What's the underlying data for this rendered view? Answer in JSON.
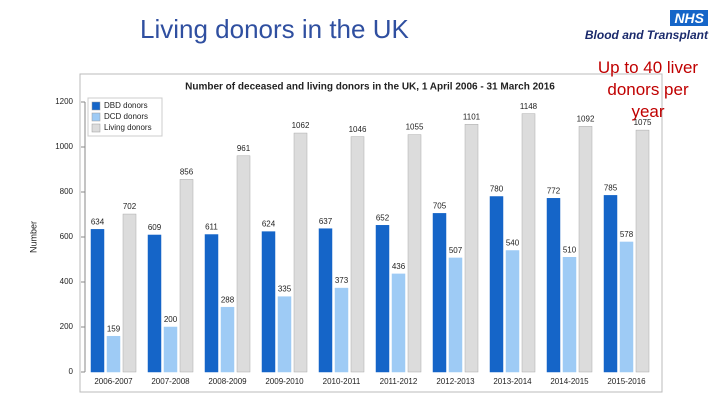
{
  "title": "Living donors in the UK",
  "logo": {
    "badge": "NHS",
    "text": "Blood and Transplant"
  },
  "annotation": "Up to 40 liver donors per year",
  "chart_data": {
    "type": "bar",
    "title": "Number of deceased and living donors in the UK, 1 April 2006 - 31 March 2016",
    "y_label": "Number",
    "categories": [
      "2006-2007",
      "2007-2008",
      "2008-2009",
      "2009-2010",
      "2010-2011",
      "2011-2012",
      "2012-2013",
      "2013-2014",
      "2014-2015",
      "2015-2016"
    ],
    "series": [
      {
        "name": "DBD donors",
        "color": "#1565c8",
        "values": [
          634,
          609,
          611,
          624,
          637,
          652,
          705,
          780,
          772,
          785
        ]
      },
      {
        "name": "DCD donors",
        "color": "#9ecbf5",
        "values": [
          159,
          200,
          288,
          335,
          373,
          436,
          507,
          540,
          510,
          578
        ]
      },
      {
        "name": "Living donors",
        "color": "#dcdcdc",
        "values": [
          702,
          856,
          961,
          1062,
          1046,
          1055,
          1101,
          1148,
          1092,
          1075
        ]
      }
    ],
    "ylim": [
      0,
      1200
    ],
    "yticks": [
      0,
      200,
      400,
      600,
      800,
      1000,
      1200
    ],
    "legend": "upper left",
    "show_values": true
  }
}
